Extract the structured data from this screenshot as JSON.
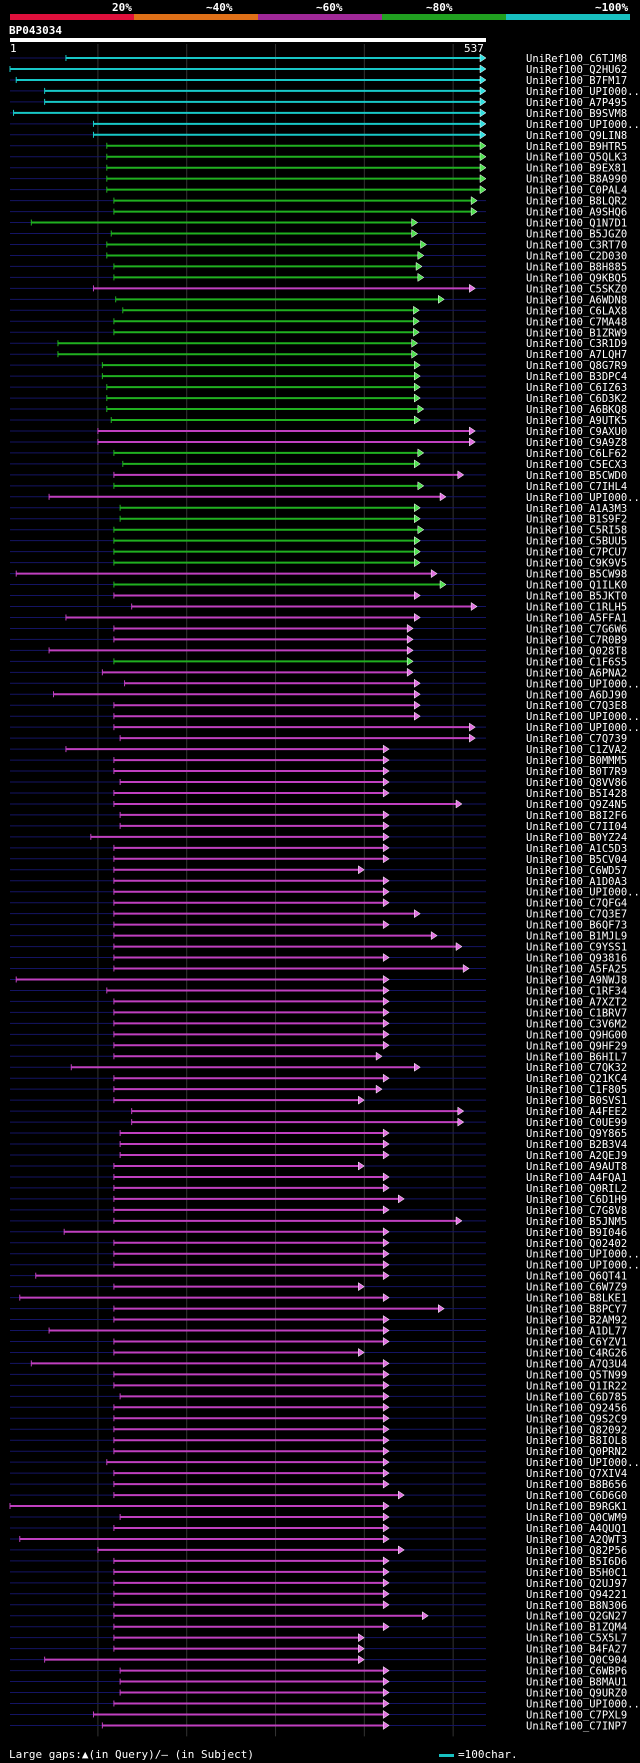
{
  "header": {
    "percent_labels": [
      "20%",
      "~40%",
      "~60%",
      "~80%",
      "~100%"
    ],
    "band_colors": [
      "#e0103c",
      "#e07018",
      "#a02898",
      "#20a020",
      "#18c0c0"
    ],
    "query_id": "BP043034",
    "query_start": "1",
    "query_end": "537"
  },
  "footer": {
    "gaps_text": "Large gaps:▲(in Query)/– (in Subject)",
    "scale_text": "=100char."
  },
  "chart_data": {
    "type": "alignment",
    "query_length": 537,
    "grid_every": 100,
    "row_spacing_note": "row index order",
    "hits": [
      {
        "name": "UniRef100_C6TJM8",
        "start": 64,
        "end": 537,
        "color": "cyan"
      },
      {
        "name": "UniRef100_Q2HU62",
        "start": 1,
        "end": 537,
        "color": "cyan"
      },
      {
        "name": "UniRef100_B7FM17",
        "start": 8,
        "end": 537,
        "color": "cyan"
      },
      {
        "name": "UniRef100_UPI000..",
        "start": 40,
        "end": 537,
        "color": "cyan"
      },
      {
        "name": "UniRef100_A7P495",
        "start": 40,
        "end": 537,
        "color": "cyan"
      },
      {
        "name": "UniRef100_B9SVM8",
        "start": 5,
        "end": 537,
        "color": "cyan"
      },
      {
        "name": "UniRef100_UPI000..",
        "start": 95,
        "end": 537,
        "color": "cyan"
      },
      {
        "name": "UniRef100_Q9LIN8",
        "start": 95,
        "end": 537,
        "color": "cyan"
      },
      {
        "name": "UniRef100_B9HTR5",
        "start": 110,
        "end": 537,
        "color": "green"
      },
      {
        "name": "UniRef100_Q5QLK3",
        "start": 110,
        "end": 537,
        "color": "green"
      },
      {
        "name": "UniRef100_B9EX81",
        "start": 110,
        "end": 537,
        "color": "green"
      },
      {
        "name": "UniRef100_B8A990",
        "start": 110,
        "end": 537,
        "color": "green"
      },
      {
        "name": "UniRef100_C0PAL4",
        "start": 110,
        "end": 537,
        "color": "green"
      },
      {
        "name": "UniRef100_B8LQR2",
        "start": 118,
        "end": 527,
        "color": "green"
      },
      {
        "name": "UniRef100_A9SHQ6",
        "start": 118,
        "end": 527,
        "color": "green"
      },
      {
        "name": "UniRef100_Q1N7D1",
        "start": 25,
        "end": 460,
        "color": "green"
      },
      {
        "name": "UniRef100_B5JGZ0",
        "start": 115,
        "end": 460,
        "color": "green"
      },
      {
        "name": "UniRef100_C3RT70",
        "start": 110,
        "end": 470,
        "color": "green"
      },
      {
        "name": "UniRef100_C2D030",
        "start": 110,
        "end": 467,
        "color": "green"
      },
      {
        "name": "UniRef100_B8H885",
        "start": 118,
        "end": 465,
        "color": "green"
      },
      {
        "name": "UniRef100_Q9KBQ5",
        "start": 118,
        "end": 467,
        "color": "green"
      },
      {
        "name": "UniRef100_C5SKZ0",
        "start": 95,
        "end": 525,
        "color": "magenta"
      },
      {
        "name": "UniRef100_A6WDN8",
        "start": 120,
        "end": 490,
        "color": "green"
      },
      {
        "name": "UniRef100_C6LAX8",
        "start": 128,
        "end": 462,
        "color": "green"
      },
      {
        "name": "UniRef100_C7MA48",
        "start": 118,
        "end": 462,
        "color": "green"
      },
      {
        "name": "UniRef100_B1ZRW9",
        "start": 118,
        "end": 462,
        "color": "green"
      },
      {
        "name": "UniRef100_C3R1D9",
        "start": 55,
        "end": 460,
        "color": "green"
      },
      {
        "name": "UniRef100_A7LQH7",
        "start": 55,
        "end": 460,
        "color": "green"
      },
      {
        "name": "UniRef100_Q8G7R9",
        "start": 105,
        "end": 463,
        "color": "green"
      },
      {
        "name": "UniRef100_B3DPC4",
        "start": 105,
        "end": 463,
        "color": "green"
      },
      {
        "name": "UniRef100_C6IZ63",
        "start": 110,
        "end": 463,
        "color": "green"
      },
      {
        "name": "UniRef100_C6D3K2",
        "start": 110,
        "end": 463,
        "color": "green"
      },
      {
        "name": "UniRef100_A6BKQ8",
        "start": 110,
        "end": 467,
        "color": "green"
      },
      {
        "name": "UniRef100_A9UTK5",
        "start": 115,
        "end": 463,
        "color": "green"
      },
      {
        "name": "UniRef100_C9AXU0",
        "start": 100,
        "end": 525,
        "color": "magenta"
      },
      {
        "name": "UniRef100_C9A9Z8",
        "start": 100,
        "end": 525,
        "color": "magenta"
      },
      {
        "name": "UniRef100_C6LF62",
        "start": 118,
        "end": 467,
        "color": "green"
      },
      {
        "name": "UniRef100_C5ECX3",
        "start": 128,
        "end": 463,
        "color": "green"
      },
      {
        "name": "UniRef100_B5CWD0",
        "start": 118,
        "end": 512,
        "color": "magenta"
      },
      {
        "name": "UniRef100_C7IHL4",
        "start": 118,
        "end": 467,
        "color": "green"
      },
      {
        "name": "UniRef100_UPI000..",
        "start": 45,
        "end": 492,
        "color": "magenta"
      },
      {
        "name": "UniRef100_A1A3M3",
        "start": 125,
        "end": 463,
        "color": "green"
      },
      {
        "name": "UniRef100_B1S9F2",
        "start": 125,
        "end": 463,
        "color": "green"
      },
      {
        "name": "UniRef100_C5RI58",
        "start": 118,
        "end": 467,
        "color": "green"
      },
      {
        "name": "UniRef100_C5BUU5",
        "start": 118,
        "end": 463,
        "color": "green"
      },
      {
        "name": "UniRef100_C7PCU7",
        "start": 118,
        "end": 463,
        "color": "green"
      },
      {
        "name": "UniRef100_C9K9V5",
        "start": 118,
        "end": 463,
        "color": "green"
      },
      {
        "name": "UniRef100_B5CW98",
        "start": 8,
        "end": 482,
        "color": "magenta"
      },
      {
        "name": "UniRef100_Q1ILK0",
        "start": 118,
        "end": 492,
        "color": "green"
      },
      {
        "name": "UniRef100_B5JKT0",
        "start": 118,
        "end": 463,
        "color": "magenta"
      },
      {
        "name": "UniRef100_C1RLH5",
        "start": 138,
        "end": 527,
        "color": "magenta"
      },
      {
        "name": "UniRef100_A5FFA1",
        "start": 64,
        "end": 463,
        "color": "magenta"
      },
      {
        "name": "UniRef100_C7G6W6",
        "start": 118,
        "end": 455,
        "color": "magenta"
      },
      {
        "name": "UniRef100_C7R0B9",
        "start": 118,
        "end": 455,
        "color": "magenta"
      },
      {
        "name": "UniRef100_Q028T8",
        "start": 45,
        "end": 455,
        "color": "magenta"
      },
      {
        "name": "UniRef100_C1F6S5",
        "start": 118,
        "end": 455,
        "color": "green"
      },
      {
        "name": "UniRef100_A6PNA2",
        "start": 105,
        "end": 455,
        "color": "magenta"
      },
      {
        "name": "UniRef100_UPI000..",
        "start": 130,
        "end": 463,
        "color": "magenta"
      },
      {
        "name": "UniRef100_A6DJ90",
        "start": 50,
        "end": 463,
        "color": "magenta"
      },
      {
        "name": "UniRef100_C7Q3E8",
        "start": 118,
        "end": 463,
        "color": "magenta"
      },
      {
        "name": "UniRef100_UPI000..",
        "start": 118,
        "end": 463,
        "color": "magenta"
      },
      {
        "name": "UniRef100_UPI000..",
        "start": 118,
        "end": 525,
        "color": "magenta"
      },
      {
        "name": "UniRef100_C7Q739",
        "start": 125,
        "end": 525,
        "color": "magenta"
      },
      {
        "name": "UniRef100_C1ZVA2",
        "start": 64,
        "end": 428,
        "color": "magenta"
      },
      {
        "name": "UniRef100_B0MMM5",
        "start": 118,
        "end": 428,
        "color": "magenta"
      },
      {
        "name": "UniRef100_B0T7R9",
        "start": 118,
        "end": 428,
        "color": "magenta"
      },
      {
        "name": "UniRef100_Q8VV86",
        "start": 125,
        "end": 428,
        "color": "magenta"
      },
      {
        "name": "UniRef100_B5I428",
        "start": 118,
        "end": 428,
        "color": "magenta"
      },
      {
        "name": "UniRef100_Q9Z4N5",
        "start": 118,
        "end": 510,
        "color": "magenta"
      },
      {
        "name": "UniRef100_B8I2F6",
        "start": 125,
        "end": 428,
        "color": "magenta"
      },
      {
        "name": "UniRef100_C7II04",
        "start": 125,
        "end": 428,
        "color": "magenta"
      },
      {
        "name": "UniRef100_B0YZ24",
        "start": 92,
        "end": 428,
        "color": "magenta"
      },
      {
        "name": "UniRef100_A1C5D3",
        "start": 118,
        "end": 428,
        "color": "magenta"
      },
      {
        "name": "UniRef100_B5CV04",
        "start": 118,
        "end": 428,
        "color": "magenta"
      },
      {
        "name": "UniRef100_C6WD57",
        "start": 118,
        "end": 400,
        "color": "magenta"
      },
      {
        "name": "UniRef100_A1D0A3",
        "start": 118,
        "end": 428,
        "color": "magenta"
      },
      {
        "name": "UniRef100_UPI000..",
        "start": 118,
        "end": 428,
        "color": "magenta"
      },
      {
        "name": "UniRef100_C7QFG4",
        "start": 118,
        "end": 428,
        "color": "magenta"
      },
      {
        "name": "UniRef100_C7Q3E7",
        "start": 118,
        "end": 463,
        "color": "magenta"
      },
      {
        "name": "UniRef100_B6QF73",
        "start": 118,
        "end": 428,
        "color": "magenta"
      },
      {
        "name": "UniRef100_B1MJL9",
        "start": 118,
        "end": 482,
        "color": "magenta"
      },
      {
        "name": "UniRef100_C9YSS1",
        "start": 118,
        "end": 510,
        "color": "magenta"
      },
      {
        "name": "UniRef100_Q93816",
        "start": 118,
        "end": 428,
        "color": "magenta"
      },
      {
        "name": "UniRef100_A5FA25",
        "start": 118,
        "end": 518,
        "color": "magenta"
      },
      {
        "name": "UniRef100_A9NWJ8",
        "start": 8,
        "end": 428,
        "color": "magenta"
      },
      {
        "name": "UniRef100_C1RF34",
        "start": 110,
        "end": 428,
        "color": "magenta"
      },
      {
        "name": "UniRef100_A7XZT2",
        "start": 118,
        "end": 428,
        "color": "magenta"
      },
      {
        "name": "UniRef100_C1BRV7",
        "start": 118,
        "end": 428,
        "color": "magenta"
      },
      {
        "name": "UniRef100_C3V6M2",
        "start": 118,
        "end": 428,
        "color": "magenta"
      },
      {
        "name": "UniRef100_Q9HG00",
        "start": 118,
        "end": 428,
        "color": "magenta"
      },
      {
        "name": "UniRef100_Q9HF29",
        "start": 118,
        "end": 428,
        "color": "magenta"
      },
      {
        "name": "UniRef100_B6HIL7",
        "start": 118,
        "end": 420,
        "color": "magenta"
      },
      {
        "name": "UniRef100_C7QK32",
        "start": 70,
        "end": 463,
        "color": "magenta"
      },
      {
        "name": "UniRef100_Q21KC4",
        "start": 118,
        "end": 428,
        "color": "magenta"
      },
      {
        "name": "UniRef100_C1F805",
        "start": 118,
        "end": 420,
        "color": "magenta"
      },
      {
        "name": "UniRef100_B0SVS1",
        "start": 118,
        "end": 400,
        "color": "magenta"
      },
      {
        "name": "UniRef100_A4FEE2",
        "start": 138,
        "end": 512,
        "color": "magenta"
      },
      {
        "name": "UniRef100_C0UE99",
        "start": 138,
        "end": 512,
        "color": "magenta"
      },
      {
        "name": "UniRef100_Q9Y865",
        "start": 125,
        "end": 428,
        "color": "magenta"
      },
      {
        "name": "UniRef100_B2B3V4",
        "start": 125,
        "end": 428,
        "color": "magenta"
      },
      {
        "name": "UniRef100_A2QEJ9",
        "start": 125,
        "end": 428,
        "color": "magenta"
      },
      {
        "name": "UniRef100_A9AUT8",
        "start": 118,
        "end": 400,
        "color": "magenta"
      },
      {
        "name": "UniRef100_A4FQA1",
        "start": 118,
        "end": 428,
        "color": "magenta"
      },
      {
        "name": "UniRef100_Q0RIL2",
        "start": 118,
        "end": 428,
        "color": "magenta"
      },
      {
        "name": "UniRef100_C6D1H9",
        "start": 118,
        "end": 445,
        "color": "magenta"
      },
      {
        "name": "UniRef100_C7G8V8",
        "start": 118,
        "end": 428,
        "color": "magenta"
      },
      {
        "name": "UniRef100_B5JNM5",
        "start": 118,
        "end": 510,
        "color": "magenta"
      },
      {
        "name": "UniRef100_B9I046",
        "start": 62,
        "end": 428,
        "color": "magenta"
      },
      {
        "name": "UniRef100_Q02402",
        "start": 118,
        "end": 428,
        "color": "magenta"
      },
      {
        "name": "UniRef100_UPI000..",
        "start": 118,
        "end": 428,
        "color": "magenta"
      },
      {
        "name": "UniRef100_UPI000..",
        "start": 118,
        "end": 428,
        "color": "magenta"
      },
      {
        "name": "UniRef100_Q6QT41",
        "start": 30,
        "end": 428,
        "color": "magenta"
      },
      {
        "name": "UniRef100_C6W7Z9",
        "start": 118,
        "end": 400,
        "color": "magenta"
      },
      {
        "name": "UniRef100_B8LKE1",
        "start": 12,
        "end": 428,
        "color": "magenta"
      },
      {
        "name": "UniRef100_B8PCY7",
        "start": 118,
        "end": 490,
        "color": "magenta"
      },
      {
        "name": "UniRef100_B2AM92",
        "start": 118,
        "end": 428,
        "color": "magenta"
      },
      {
        "name": "UniRef100_A1DL77",
        "start": 45,
        "end": 428,
        "color": "magenta"
      },
      {
        "name": "UniRef100_C6YZV1",
        "start": 118,
        "end": 428,
        "color": "magenta"
      },
      {
        "name": "UniRef100_C4RG26",
        "start": 118,
        "end": 400,
        "color": "magenta"
      },
      {
        "name": "UniRef100_A7Q3U4",
        "start": 25,
        "end": 428,
        "color": "magenta"
      },
      {
        "name": "UniRef100_Q5TN99",
        "start": 118,
        "end": 428,
        "color": "magenta"
      },
      {
        "name": "UniRef100_Q1IR22",
        "start": 118,
        "end": 428,
        "color": "magenta"
      },
      {
        "name": "UniRef100_C6D785",
        "start": 125,
        "end": 428,
        "color": "magenta"
      },
      {
        "name": "UniRef100_Q92456",
        "start": 118,
        "end": 428,
        "color": "magenta"
      },
      {
        "name": "UniRef100_Q9S2C9",
        "start": 118,
        "end": 428,
        "color": "magenta"
      },
      {
        "name": "UniRef100_Q82092",
        "start": 118,
        "end": 428,
        "color": "magenta"
      },
      {
        "name": "UniRef100_B8IOL8",
        "start": 118,
        "end": 428,
        "color": "magenta"
      },
      {
        "name": "UniRef100_Q0PRN2",
        "start": 118,
        "end": 428,
        "color": "magenta"
      },
      {
        "name": "UniRef100_UPI000..",
        "start": 110,
        "end": 428,
        "color": "magenta"
      },
      {
        "name": "UniRef100_Q7XIV4",
        "start": 118,
        "end": 428,
        "color": "magenta"
      },
      {
        "name": "UniRef100_B8B656",
        "start": 118,
        "end": 428,
        "color": "magenta"
      },
      {
        "name": "UniRef100_C6D6G0",
        "start": 118,
        "end": 445,
        "color": "magenta"
      },
      {
        "name": "UniRef100_B9RGK1",
        "start": 1,
        "end": 428,
        "color": "magenta"
      },
      {
        "name": "UniRef100_Q0CWM9",
        "start": 125,
        "end": 428,
        "color": "magenta"
      },
      {
        "name": "UniRef100_A4QUQ1",
        "start": 118,
        "end": 428,
        "color": "magenta"
      },
      {
        "name": "UniRef100_A2QWT3",
        "start": 12,
        "end": 428,
        "color": "magenta"
      },
      {
        "name": "UniRef100_Q82P56",
        "start": 100,
        "end": 445,
        "color": "magenta"
      },
      {
        "name": "UniRef100_B5I6D6",
        "start": 118,
        "end": 428,
        "color": "magenta"
      },
      {
        "name": "UniRef100_B5H0C1",
        "start": 118,
        "end": 428,
        "color": "magenta"
      },
      {
        "name": "UniRef100_Q2UJ97",
        "start": 118,
        "end": 428,
        "color": "magenta"
      },
      {
        "name": "UniRef100_Q94221",
        "start": 118,
        "end": 428,
        "color": "magenta"
      },
      {
        "name": "UniRef100_B8N306",
        "start": 118,
        "end": 428,
        "color": "magenta"
      },
      {
        "name": "UniRef100_Q2GN27",
        "start": 118,
        "end": 472,
        "color": "magenta"
      },
      {
        "name": "UniRef100_B1ZQM4",
        "start": 118,
        "end": 428,
        "color": "magenta"
      },
      {
        "name": "UniRef100_C5X5L7",
        "start": 118,
        "end": 400,
        "color": "magenta"
      },
      {
        "name": "UniRef100_B4FA27",
        "start": 118,
        "end": 400,
        "color": "magenta"
      },
      {
        "name": "UniRef100_Q0C904",
        "start": 40,
        "end": 400,
        "color": "magenta"
      },
      {
        "name": "UniRef100_C6WBP6",
        "start": 125,
        "end": 428,
        "color": "magenta"
      },
      {
        "name": "UniRef100_B8MAU1",
        "start": 125,
        "end": 428,
        "color": "magenta"
      },
      {
        "name": "UniRef100_Q9URZ0",
        "start": 125,
        "end": 428,
        "color": "magenta"
      },
      {
        "name": "UniRef100_UPI000..",
        "start": 118,
        "end": 428,
        "color": "magenta"
      },
      {
        "name": "UniRef100_C7PXL9",
        "start": 95,
        "end": 428,
        "color": "magenta"
      },
      {
        "name": "UniRef100_C7INP7",
        "start": 105,
        "end": 428,
        "color": "magenta"
      }
    ]
  }
}
